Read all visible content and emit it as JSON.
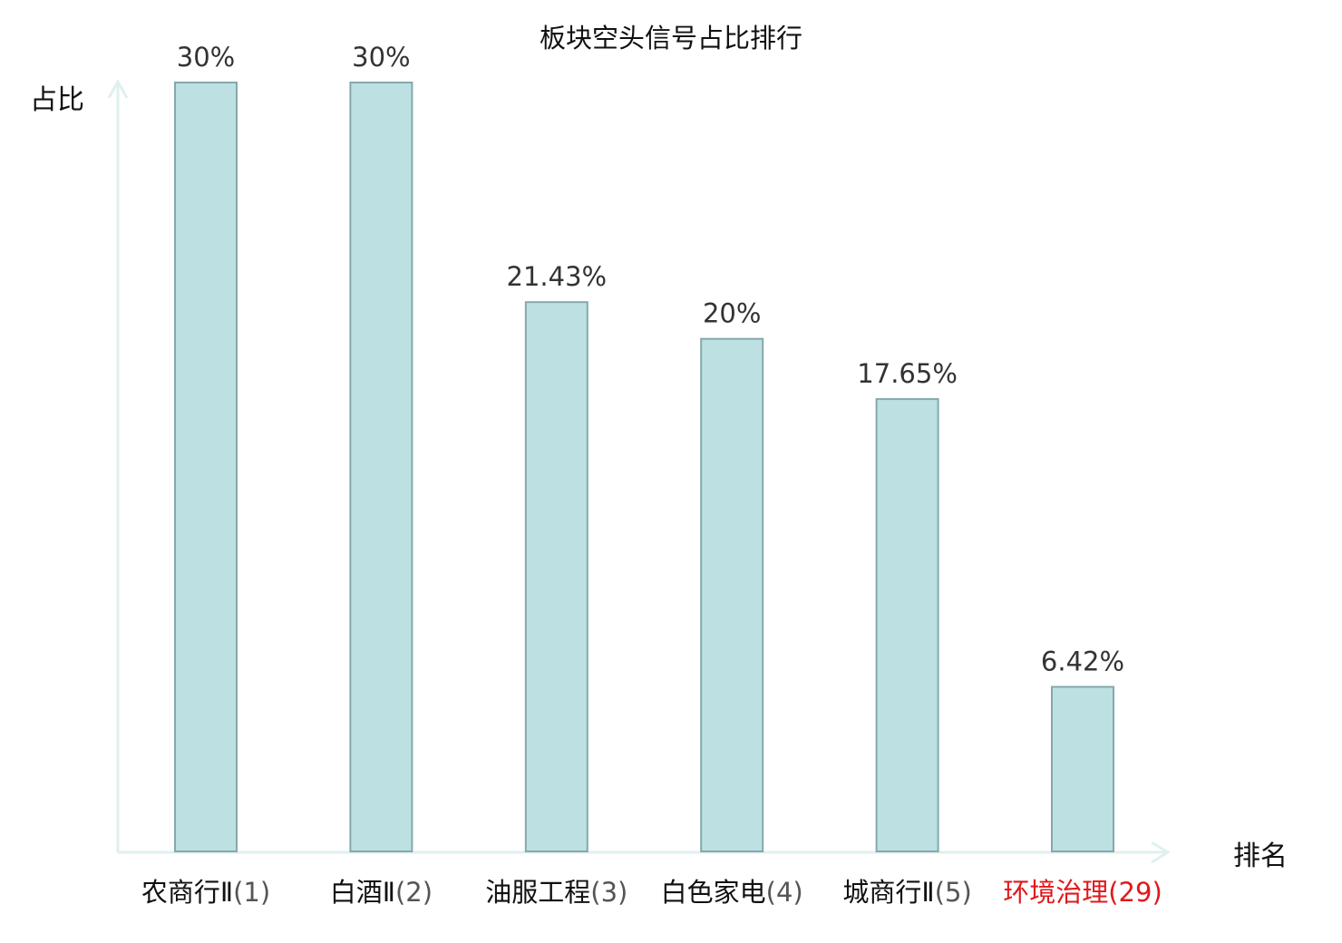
{
  "chart_data": {
    "type": "bar",
    "title": "板块空头信号占比排行",
    "xlabel": "排名",
    "ylabel": "占比",
    "ylim": [
      0,
      30
    ],
    "grid": false,
    "categories": [
      "农商行Ⅱ(1)",
      "白酒Ⅱ(2)",
      "油服工程(3)",
      "白色家电(4)",
      "城商行Ⅱ(5)",
      "环境治理(29)"
    ],
    "category_names": [
      "农商行Ⅱ",
      "白酒Ⅱ",
      "油服工程",
      "白色家电",
      "城商行Ⅱ",
      "环境治理"
    ],
    "ranks": [
      "(1)",
      "(2)",
      "(3)",
      "(4)",
      "(5)",
      "(29)"
    ],
    "values": [
      30,
      30,
      21.43,
      20,
      17.65,
      6.42
    ],
    "value_labels": [
      "30%",
      "30%",
      "21.43%",
      "20%",
      "17.65%",
      "6.42%"
    ],
    "highlight_index": 5,
    "colors": {
      "bar_fill": "#bde0e2",
      "bar_stroke": "#86a8aa",
      "axis": "#dff1ef",
      "highlight_text": "#e0191b",
      "default_text": "#111111",
      "rank_text": "#555555"
    }
  }
}
